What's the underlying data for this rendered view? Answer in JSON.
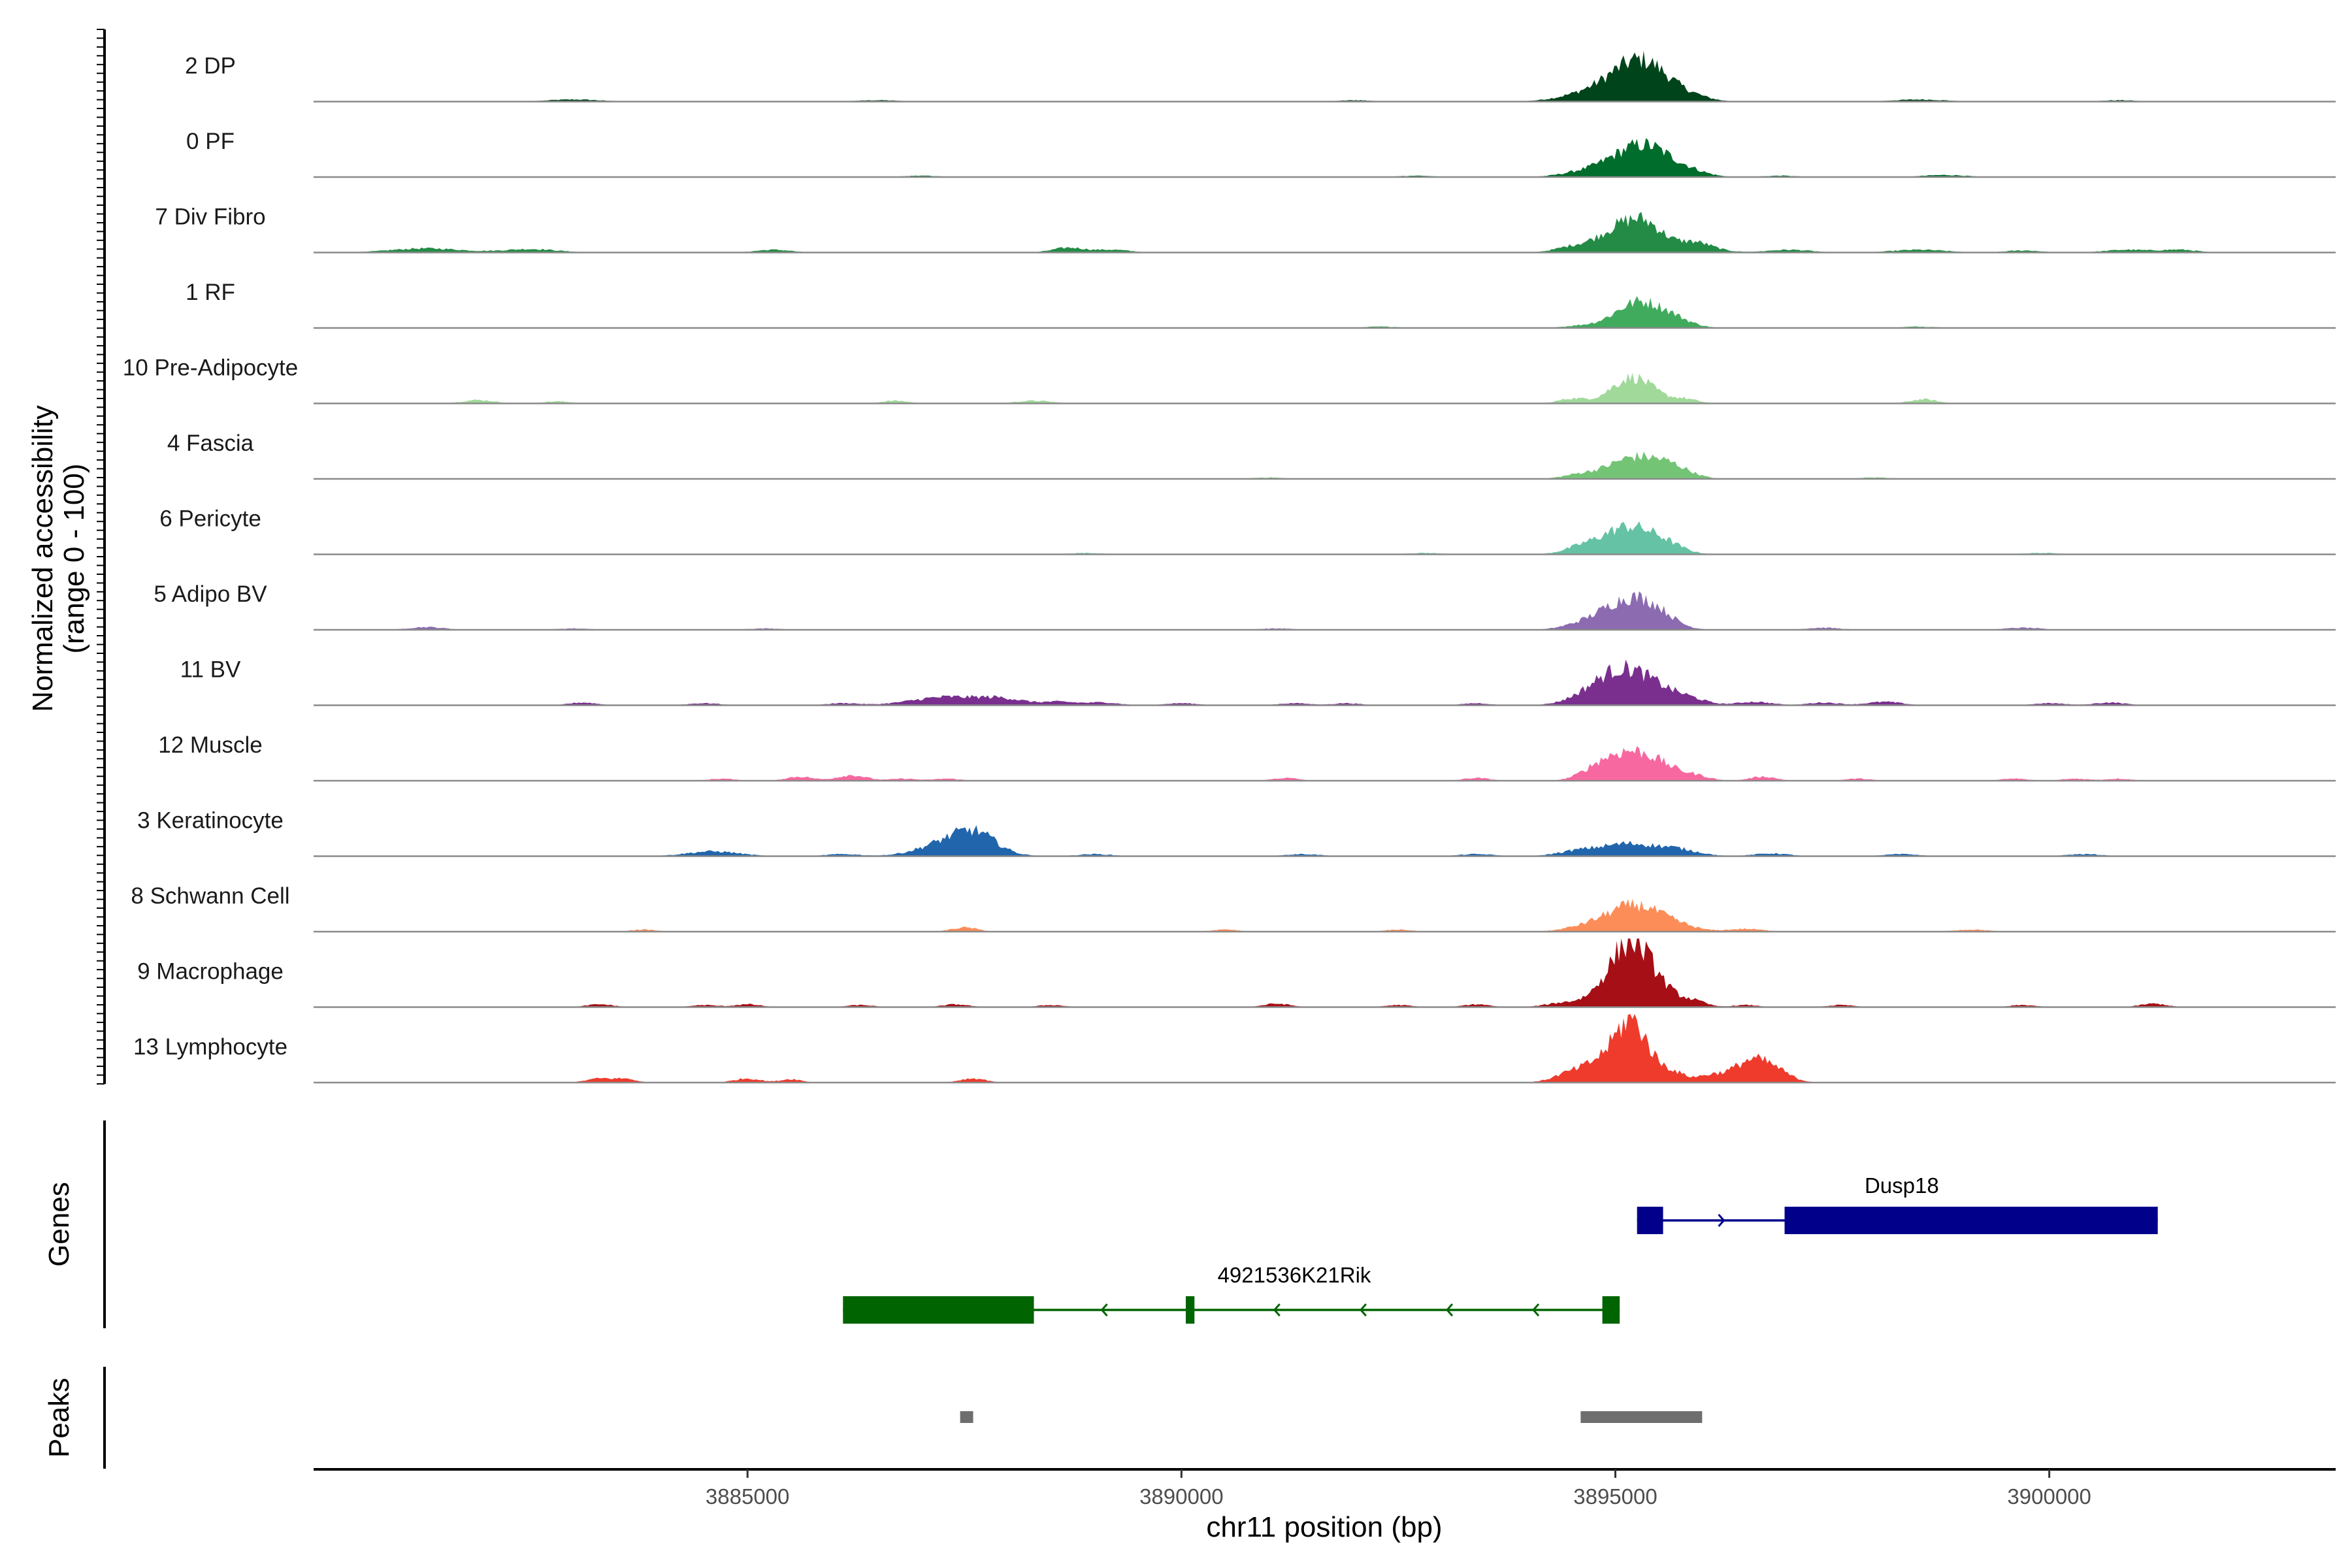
{
  "chart_data": {
    "type": "area",
    "ylabel": "Normalized accessibility",
    "ylabel_range": "(range 0 - 100)",
    "xlabel": "chr11 position (bp)",
    "xlim": [
      3880000,
      3903300
    ],
    "ylim": [
      0,
      100
    ],
    "xticks": [
      "3885000",
      "3890000",
      "3895000",
      "3900000"
    ],
    "tracks": [
      {
        "name": "2 DP",
        "color": "#00441b",
        "peaks": [
          [
            3895200,
            48,
            320
          ],
          [
            3895450,
            18,
            250
          ],
          [
            3894600,
            8,
            300
          ],
          [
            3895900,
            6,
            200
          ],
          [
            3883000,
            3,
            300
          ],
          [
            3886500,
            2,
            250
          ],
          [
            3892000,
            2,
            200
          ],
          [
            3898500,
            3,
            300
          ],
          [
            3900800,
            2,
            200
          ]
        ]
      },
      {
        "name": "0 PF",
        "color": "#006d2c",
        "peaks": [
          [
            3895200,
            38,
            300
          ],
          [
            3895450,
            14,
            200
          ],
          [
            3895800,
            11,
            220
          ],
          [
            3894600,
            6,
            250
          ],
          [
            3887000,
            2,
            200
          ],
          [
            3892700,
            2,
            200
          ],
          [
            3896900,
            2,
            200
          ],
          [
            3898800,
            3,
            250
          ]
        ]
      },
      {
        "name": "7 Div Fibro",
        "color": "#238b45",
        "peaks": [
          [
            3895100,
            38,
            280
          ],
          [
            3895400,
            22,
            200
          ],
          [
            3895900,
            10,
            180
          ],
          [
            3894500,
            7,
            200
          ],
          [
            3881300,
            6,
            400
          ],
          [
            3882500,
            5,
            300
          ],
          [
            3885300,
            4,
            200
          ],
          [
            3888700,
            7,
            180
          ],
          [
            3889200,
            4,
            200
          ],
          [
            3896000,
            5,
            250
          ],
          [
            3897000,
            4,
            250
          ],
          [
            3898500,
            4,
            300
          ],
          [
            3899700,
            3,
            200
          ],
          [
            3900900,
            4,
            250
          ],
          [
            3901500,
            4,
            200
          ]
        ]
      },
      {
        "name": "1 RF",
        "color": "#41ab5d",
        "peaks": [
          [
            3895250,
            36,
            260
          ],
          [
            3895650,
            12,
            220
          ],
          [
            3894600,
            3,
            200
          ],
          [
            3892300,
            2,
            200
          ],
          [
            3898500,
            2,
            200
          ]
        ]
      },
      {
        "name": "10 Pre-Adipocyte",
        "color": "#a1d99b",
        "peaks": [
          [
            3895200,
            38,
            240
          ],
          [
            3894500,
            7,
            150
          ],
          [
            3895800,
            6,
            150
          ],
          [
            3881900,
            5,
            180
          ],
          [
            3882800,
            3,
            150
          ],
          [
            3886700,
            4,
            150
          ],
          [
            3888300,
            4,
            200
          ],
          [
            3898550,
            6,
            150
          ]
        ]
      },
      {
        "name": "4 Fascia",
        "color": "#74c476",
        "peaks": [
          [
            3895200,
            30,
            280
          ],
          [
            3895650,
            16,
            220
          ],
          [
            3894600,
            6,
            200
          ],
          [
            3891000,
            2,
            200
          ],
          [
            3898000,
            2,
            200
          ]
        ]
      },
      {
        "name": "6 Pericyte",
        "color": "#66c2a5",
        "peaks": [
          [
            3895150,
            40,
            300
          ],
          [
            3895600,
            9,
            200
          ],
          [
            3894600,
            8,
            200
          ],
          [
            3888900,
            2,
            200
          ],
          [
            3892800,
            2,
            200
          ],
          [
            3899900,
            2,
            200
          ]
        ]
      },
      {
        "name": "5 Adipo BV",
        "color": "#8c6bb1",
        "peaks": [
          [
            3895150,
            44,
            300
          ],
          [
            3895500,
            12,
            200
          ],
          [
            3894600,
            6,
            220
          ],
          [
            3881300,
            4,
            200
          ],
          [
            3883000,
            2,
            200
          ],
          [
            3885200,
            2,
            200
          ],
          [
            3891100,
            2,
            200
          ],
          [
            3897400,
            3,
            200
          ],
          [
            3899700,
            3,
            200
          ]
        ]
      },
      {
        "name": "11 BV",
        "color": "#7a2f8f",
        "peaks": [
          [
            3895100,
            48,
            280
          ],
          [
            3894700,
            12,
            250
          ],
          [
            3895500,
            14,
            220
          ],
          [
            3895850,
            9,
            200
          ],
          [
            3887300,
            12,
            400
          ],
          [
            3887950,
            8,
            250
          ],
          [
            3888600,
            5,
            200
          ],
          [
            3889100,
            4,
            180
          ],
          [
            3883100,
            4,
            160
          ],
          [
            3884500,
            3,
            180
          ],
          [
            3886100,
            3,
            180
          ],
          [
            3890000,
            3,
            180
          ],
          [
            3891300,
            3,
            180
          ],
          [
            3891900,
            3,
            160
          ],
          [
            3893400,
            3,
            160
          ],
          [
            3896600,
            5,
            200
          ],
          [
            3897400,
            4,
            180
          ],
          [
            3898100,
            5,
            200
          ],
          [
            3900000,
            3,
            180
          ],
          [
            3900700,
            4,
            180
          ]
        ]
      },
      {
        "name": "12 Muscle",
        "color": "#f768a1",
        "peaks": [
          [
            3895200,
            40,
            260
          ],
          [
            3894800,
            16,
            200
          ],
          [
            3895600,
            12,
            200
          ],
          [
            3895950,
            6,
            150
          ],
          [
            3884700,
            3,
            150
          ],
          [
            3885600,
            6,
            150
          ],
          [
            3886200,
            8,
            170
          ],
          [
            3886800,
            3,
            150
          ],
          [
            3887300,
            3,
            150
          ],
          [
            3891200,
            4,
            150
          ],
          [
            3893400,
            4,
            150
          ],
          [
            3896700,
            6,
            150
          ],
          [
            3897800,
            3,
            150
          ],
          [
            3899600,
            3,
            150
          ],
          [
            3900300,
            3,
            150
          ],
          [
            3900800,
            3,
            150
          ]
        ]
      },
      {
        "name": "3 Keratinocyte",
        "color": "#2166ac",
        "peaks": [
          [
            3887400,
            24,
            350
          ],
          [
            3887650,
            18,
            220
          ],
          [
            3884600,
            7,
            300
          ],
          [
            3895150,
            17,
            280
          ],
          [
            3894600,
            8,
            250
          ],
          [
            3895700,
            10,
            250
          ],
          [
            3886100,
            3,
            200
          ],
          [
            3889000,
            3,
            200
          ],
          [
            3891400,
            3,
            200
          ],
          [
            3893400,
            3,
            200
          ],
          [
            3896800,
            4,
            200
          ],
          [
            3898300,
            3,
            200
          ],
          [
            3900400,
            3,
            200
          ]
        ]
      },
      {
        "name": "8 Schwann Cell",
        "color": "#fc8d59",
        "peaks": [
          [
            3895200,
            36,
            280
          ],
          [
            3895650,
            10,
            250
          ],
          [
            3894700,
            8,
            250
          ],
          [
            3887500,
            6,
            150
          ],
          [
            3883800,
            3,
            150
          ],
          [
            3890500,
            3,
            150
          ],
          [
            3892500,
            3,
            150
          ],
          [
            3896500,
            4,
            200
          ],
          [
            3899100,
            3,
            200
          ]
        ]
      },
      {
        "name": "9 Macrophage",
        "color": "#a50f15",
        "peaks": [
          [
            3895200,
            74,
            200
          ],
          [
            3894950,
            30,
            220
          ],
          [
            3895500,
            24,
            200
          ],
          [
            3895900,
            8,
            150
          ],
          [
            3894400,
            6,
            200
          ],
          [
            3883300,
            4,
            150
          ],
          [
            3884500,
            3,
            150
          ],
          [
            3885000,
            4,
            150
          ],
          [
            3886300,
            3,
            150
          ],
          [
            3887400,
            4,
            150
          ],
          [
            3888500,
            3,
            150
          ],
          [
            3891100,
            5,
            150
          ],
          [
            3892500,
            3,
            150
          ],
          [
            3893400,
            4,
            150
          ],
          [
            3896500,
            3,
            150
          ],
          [
            3897600,
            3,
            150
          ],
          [
            3899700,
            3,
            150
          ],
          [
            3901200,
            5,
            150
          ]
        ]
      },
      {
        "name": "13 Lymphocyte",
        "color": "#ef3b2c",
        "peaks": [
          [
            3895200,
            80,
            170
          ],
          [
            3894900,
            32,
            200
          ],
          [
            3894500,
            14,
            200
          ],
          [
            3895600,
            18,
            180
          ],
          [
            3896550,
            30,
            200
          ],
          [
            3896850,
            14,
            180
          ],
          [
            3896100,
            10,
            150
          ],
          [
            3883300,
            6,
            150
          ],
          [
            3883600,
            5,
            120
          ],
          [
            3885000,
            6,
            150
          ],
          [
            3885500,
            5,
            120
          ],
          [
            3887600,
            6,
            150
          ]
        ]
      }
    ],
    "genes": [
      {
        "name": "Dusp18",
        "strand": "+",
        "start": 3895250,
        "end": 3901250,
        "color": "#00008b",
        "exons": [
          [
            3895250,
            3895550
          ],
          [
            3896950,
            3901250
          ]
        ]
      },
      {
        "name": "4921536K21Rik",
        "strand": "-",
        "start": 3886100,
        "end": 3895050,
        "color": "#006400",
        "exons": [
          [
            3886100,
            3888300
          ],
          [
            3890050,
            3890150
          ],
          [
            3894850,
            3895050
          ]
        ]
      }
    ],
    "peaks_track": [
      [
        3887450,
        3887600
      ],
      [
        3894600,
        3896000
      ]
    ],
    "panel_labels": {
      "genes": "Genes",
      "peaks": "Peaks"
    },
    "grid": false,
    "legend": "none"
  }
}
